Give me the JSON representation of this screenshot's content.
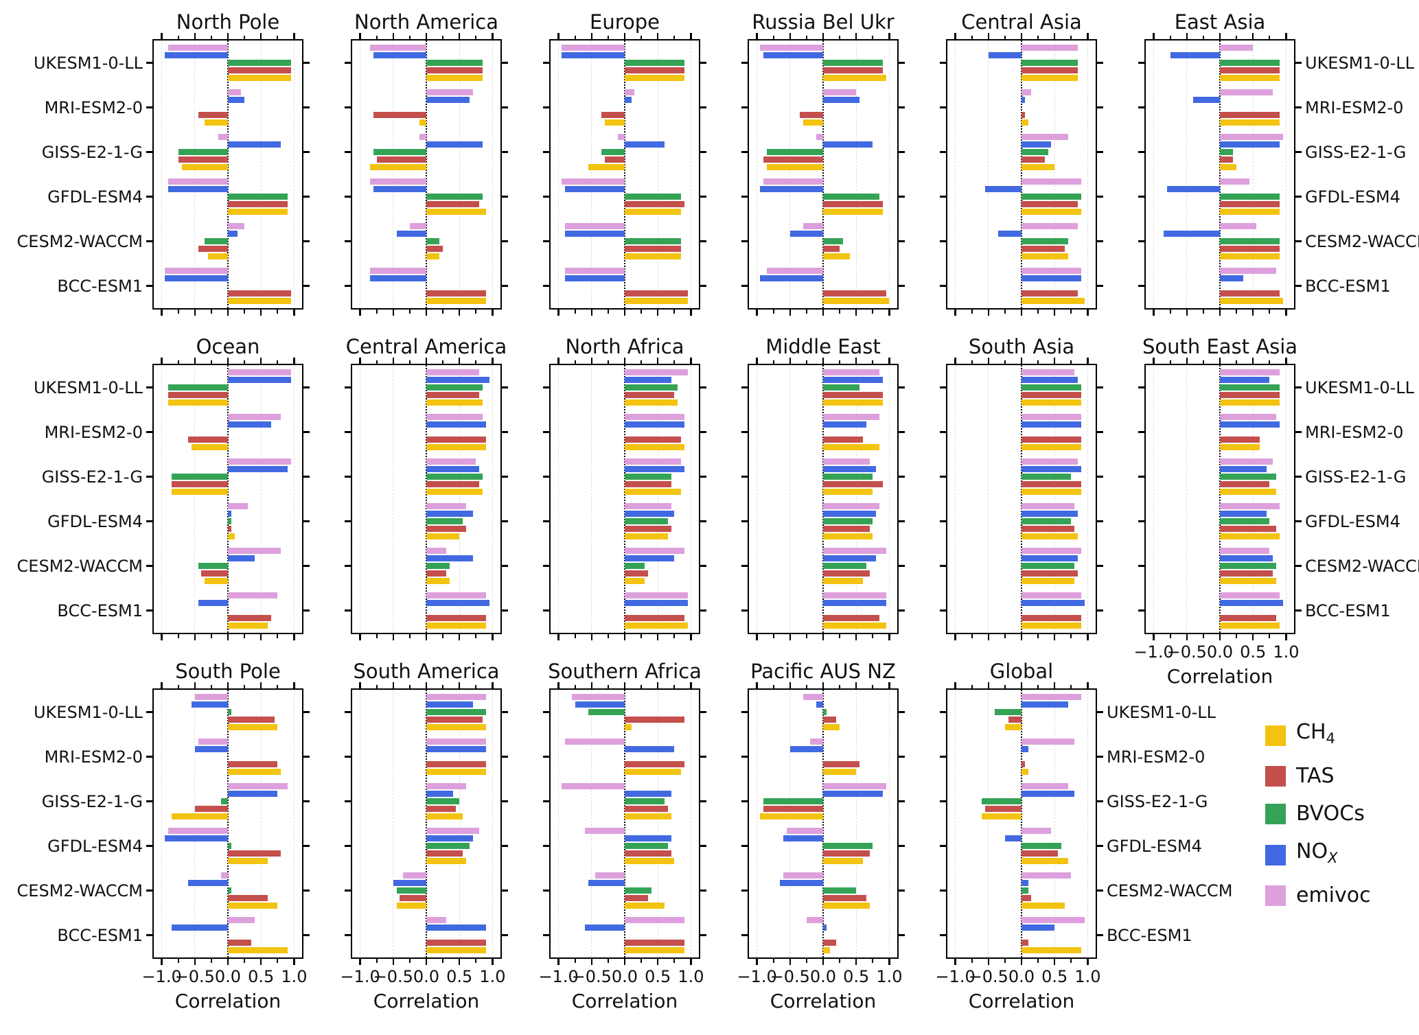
{
  "figure": {
    "background": "#ffffff",
    "text_color": "#111111"
  },
  "chart_data": {
    "type": "bar",
    "orientation": "horizontal",
    "xlabel": "Correlation",
    "xlim": [
      -1.12,
      1.12
    ],
    "xticks": [
      -1.0,
      -0.5,
      0.0,
      0.5,
      1.0
    ],
    "xtick_labels": [
      "−1.0",
      "−0.5",
      "0.0",
      "0.5",
      "1.0"
    ],
    "minor_xticks": [
      -0.75,
      -0.25,
      0.25,
      0.75
    ],
    "grid": {
      "dashed_gridlines_at": [
        -1.0,
        -0.5,
        0.5,
        1.0
      ],
      "zero_line": "dotted"
    },
    "models": [
      "UKESM1-0-LL",
      "MRI-ESM2-0",
      "GISS-E2-1-G",
      "GFDL-ESM4",
      "CESM2-WACCM",
      "BCC-ESM1"
    ],
    "series": [
      "CH4",
      "TAS",
      "BVOCs",
      "NOx",
      "emivoc"
    ],
    "bar_order_top_to_bottom": [
      "emivoc",
      "NOx",
      "BVOCs",
      "TAS",
      "CH4"
    ],
    "colors": {
      "CH4": "#F3C311",
      "TAS": "#C44F4C",
      "BVOCs": "#35A356",
      "NOx": "#4169E1",
      "emivoc": "#DDA0DD"
    },
    "legend": {
      "position": "bottom-right",
      "items": [
        {
          "series": "CH4",
          "base": "CH",
          "sub": "4",
          "sub_italic": false
        },
        {
          "series": "TAS",
          "base": "TAS",
          "sub": "",
          "sub_italic": false
        },
        {
          "series": "BVOCs",
          "base": "BVOCs",
          "sub": "",
          "sub_italic": false
        },
        {
          "series": "NOx",
          "base": "NO",
          "sub": "X",
          "sub_italic": true
        },
        {
          "series": "emivoc",
          "base": "emivoc",
          "sub": "",
          "sub_italic": false
        }
      ]
    },
    "panels": [
      {
        "title": "North Pole",
        "row": 0,
        "col": 0,
        "ylabels": "left",
        "xticklabels": false,
        "xlabel": false,
        "values": {
          "UKESM1-0-LL": [
            0.95,
            0.95,
            0.95,
            -0.95,
            -0.9
          ],
          "MRI-ESM2-0": [
            -0.35,
            -0.45,
            null,
            0.25,
            0.2
          ],
          "GISS-E2-1-G": [
            -0.7,
            -0.75,
            -0.75,
            0.8,
            -0.15
          ],
          "GFDL-ESM4": [
            0.9,
            0.9,
            0.9,
            -0.9,
            -0.9
          ],
          "CESM2-WACCM": [
            -0.3,
            -0.45,
            -0.35,
            0.15,
            0.25
          ],
          "BCC-ESM1": [
            0.95,
            0.95,
            null,
            -0.95,
            -0.95
          ]
        }
      },
      {
        "title": "North America",
        "row": 0,
        "col": 1,
        "ylabels": "none",
        "xticklabels": false,
        "xlabel": false,
        "values": {
          "UKESM1-0-LL": [
            0.85,
            0.85,
            0.85,
            -0.8,
            -0.85
          ],
          "MRI-ESM2-0": [
            -0.1,
            -0.8,
            null,
            0.65,
            0.7
          ],
          "GISS-E2-1-G": [
            -0.85,
            -0.75,
            -0.8,
            0.85,
            -0.1
          ],
          "GFDL-ESM4": [
            0.9,
            0.8,
            0.85,
            -0.8,
            -0.85
          ],
          "CESM2-WACCM": [
            0.2,
            0.25,
            0.2,
            -0.45,
            -0.25
          ],
          "BCC-ESM1": [
            0.9,
            0.9,
            null,
            -0.85,
            -0.85
          ]
        }
      },
      {
        "title": "Europe",
        "row": 0,
        "col": 2,
        "ylabels": "none",
        "xticklabels": false,
        "xlabel": false,
        "values": {
          "UKESM1-0-LL": [
            0.9,
            0.9,
            0.9,
            -0.95,
            -0.95
          ],
          "MRI-ESM2-0": [
            -0.3,
            -0.35,
            null,
            0.1,
            0.15
          ],
          "GISS-E2-1-G": [
            -0.55,
            -0.3,
            -0.35,
            0.6,
            -0.1
          ],
          "GFDL-ESM4": [
            0.85,
            0.9,
            0.85,
            -0.9,
            -0.95
          ],
          "CESM2-WACCM": [
            0.85,
            0.85,
            0.85,
            -0.9,
            -0.9
          ],
          "BCC-ESM1": [
            0.95,
            0.95,
            null,
            -0.9,
            -0.9
          ]
        }
      },
      {
        "title": "Russia Bel Ukr",
        "row": 0,
        "col": 3,
        "ylabels": "none",
        "xticklabels": false,
        "xlabel": false,
        "values": {
          "UKESM1-0-LL": [
            0.95,
            0.9,
            0.9,
            -0.9,
            -0.95
          ],
          "MRI-ESM2-0": [
            -0.3,
            -0.35,
            null,
            0.55,
            0.5
          ],
          "GISS-E2-1-G": [
            -0.85,
            -0.9,
            -0.85,
            0.75,
            -0.1
          ],
          "GFDL-ESM4": [
            0.9,
            0.9,
            0.85,
            -0.95,
            -0.9
          ],
          "CESM2-WACCM": [
            0.4,
            0.25,
            0.3,
            -0.5,
            -0.3
          ],
          "BCC-ESM1": [
            1.0,
            0.95,
            null,
            -0.95,
            -0.85
          ]
        }
      },
      {
        "title": "Central Asia",
        "row": 0,
        "col": 4,
        "ylabels": "none",
        "xticklabels": false,
        "xlabel": false,
        "values": {
          "UKESM1-0-LL": [
            0.85,
            0.85,
            0.85,
            -0.5,
            0.85
          ],
          "MRI-ESM2-0": [
            0.1,
            0.05,
            null,
            0.05,
            0.15
          ],
          "GISS-E2-1-G": [
            0.5,
            0.35,
            0.4,
            0.45,
            0.7
          ],
          "GFDL-ESM4": [
            0.9,
            0.85,
            0.9,
            -0.55,
            0.9
          ],
          "CESM2-WACCM": [
            0.7,
            0.65,
            0.7,
            -0.35,
            0.85
          ],
          "BCC-ESM1": [
            0.95,
            0.85,
            null,
            0.9,
            0.9
          ]
        }
      },
      {
        "title": "East Asia",
        "row": 0,
        "col": 5,
        "ylabels": "right",
        "xticklabels": false,
        "xlabel": false,
        "values": {
          "UKESM1-0-LL": [
            0.9,
            0.9,
            0.9,
            -0.75,
            0.5
          ],
          "MRI-ESM2-0": [
            0.9,
            0.9,
            null,
            -0.4,
            0.8
          ],
          "GISS-E2-1-G": [
            0.25,
            0.2,
            0.2,
            0.9,
            0.95
          ],
          "GFDL-ESM4": [
            0.9,
            0.9,
            0.9,
            -0.8,
            0.45
          ],
          "CESM2-WACCM": [
            0.9,
            0.9,
            0.9,
            -0.85,
            0.55
          ],
          "BCC-ESM1": [
            0.95,
            0.9,
            null,
            0.35,
            0.85
          ]
        }
      },
      {
        "title": "Ocean",
        "row": 1,
        "col": 0,
        "ylabels": "left",
        "xticklabels": false,
        "xlabel": false,
        "values": {
          "UKESM1-0-LL": [
            -0.9,
            -0.9,
            -0.9,
            0.95,
            0.95
          ],
          "MRI-ESM2-0": [
            -0.55,
            -0.6,
            null,
            0.65,
            0.8
          ],
          "GISS-E2-1-G": [
            -0.85,
            -0.85,
            -0.85,
            0.9,
            0.95
          ],
          "GFDL-ESM4": [
            0.1,
            0.05,
            0.05,
            0.05,
            0.3
          ],
          "CESM2-WACCM": [
            -0.35,
            -0.4,
            -0.45,
            0.4,
            0.8
          ],
          "BCC-ESM1": [
            0.6,
            0.65,
            null,
            -0.45,
            0.75
          ]
        }
      },
      {
        "title": "Central America",
        "row": 1,
        "col": 1,
        "ylabels": "none",
        "xticklabels": false,
        "xlabel": false,
        "values": {
          "UKESM1-0-LL": [
            0.85,
            0.8,
            0.85,
            0.95,
            0.8
          ],
          "MRI-ESM2-0": [
            0.9,
            0.9,
            null,
            0.9,
            0.85
          ],
          "GISS-E2-1-G": [
            0.85,
            0.8,
            0.85,
            0.8,
            0.75
          ],
          "GFDL-ESM4": [
            0.5,
            0.6,
            0.55,
            0.7,
            0.6
          ],
          "CESM2-WACCM": [
            0.35,
            0.3,
            0.35,
            0.7,
            0.3
          ],
          "BCC-ESM1": [
            0.9,
            0.9,
            null,
            0.95,
            0.9
          ]
        }
      },
      {
        "title": "North Africa",
        "row": 1,
        "col": 2,
        "ylabels": "none",
        "xticklabels": false,
        "xlabel": false,
        "values": {
          "UKESM1-0-LL": [
            0.8,
            0.75,
            0.8,
            0.7,
            0.95
          ],
          "MRI-ESM2-0": [
            0.9,
            0.85,
            null,
            0.9,
            0.9
          ],
          "GISS-E2-1-G": [
            0.85,
            0.7,
            0.7,
            0.9,
            0.85
          ],
          "GFDL-ESM4": [
            0.65,
            0.7,
            0.65,
            0.75,
            0.7
          ],
          "CESM2-WACCM": [
            0.3,
            0.35,
            0.3,
            0.75,
            0.9
          ],
          "BCC-ESM1": [
            0.95,
            0.9,
            null,
            0.95,
            0.95
          ]
        }
      },
      {
        "title": "Middle East",
        "row": 1,
        "col": 3,
        "ylabels": "none",
        "xticklabels": false,
        "xlabel": false,
        "values": {
          "UKESM1-0-LL": [
            0.9,
            0.9,
            0.55,
            0.9,
            0.85
          ],
          "MRI-ESM2-0": [
            0.85,
            0.6,
            null,
            0.65,
            0.85
          ],
          "GISS-E2-1-G": [
            0.75,
            0.9,
            0.75,
            0.8,
            0.7
          ],
          "GFDL-ESM4": [
            0.75,
            0.7,
            0.75,
            0.8,
            0.85
          ],
          "CESM2-WACCM": [
            0.6,
            0.7,
            0.65,
            0.8,
            0.95
          ],
          "BCC-ESM1": [
            0.95,
            0.85,
            null,
            0.95,
            0.95
          ]
        }
      },
      {
        "title": "South Asia",
        "row": 1,
        "col": 4,
        "ylabels": "none",
        "xticklabels": false,
        "xlabel": false,
        "values": {
          "UKESM1-0-LL": [
            0.9,
            0.9,
            0.9,
            0.85,
            0.8
          ],
          "MRI-ESM2-0": [
            0.9,
            0.9,
            null,
            0.9,
            0.9
          ],
          "GISS-E2-1-G": [
            0.9,
            0.9,
            0.75,
            0.9,
            0.85
          ],
          "GFDL-ESM4": [
            0.85,
            0.8,
            0.75,
            0.85,
            0.8
          ],
          "CESM2-WACCM": [
            0.8,
            0.85,
            0.8,
            0.85,
            0.9
          ],
          "BCC-ESM1": [
            0.9,
            0.9,
            null,
            0.95,
            0.9
          ]
        }
      },
      {
        "title": "South East Asia",
        "row": 1,
        "col": 5,
        "ylabels": "right",
        "xticklabels": true,
        "xlabel": true,
        "values": {
          "UKESM1-0-LL": [
            0.9,
            0.9,
            0.9,
            0.75,
            0.9
          ],
          "MRI-ESM2-0": [
            0.6,
            0.6,
            null,
            0.9,
            0.85
          ],
          "GISS-E2-1-G": [
            0.85,
            0.75,
            0.85,
            0.7,
            0.8
          ],
          "GFDL-ESM4": [
            0.9,
            0.85,
            0.75,
            0.7,
            0.9
          ],
          "CESM2-WACCM": [
            0.85,
            0.8,
            0.85,
            0.8,
            0.75
          ],
          "BCC-ESM1": [
            0.9,
            0.85,
            null,
            0.95,
            0.9
          ]
        }
      },
      {
        "title": "South Pole",
        "row": 2,
        "col": 0,
        "ylabels": "left",
        "xticklabels": true,
        "xlabel": true,
        "values": {
          "UKESM1-0-LL": [
            0.75,
            0.7,
            0.05,
            -0.55,
            -0.5
          ],
          "MRI-ESM2-0": [
            0.8,
            0.75,
            null,
            -0.5,
            -0.45
          ],
          "GISS-E2-1-G": [
            -0.85,
            -0.5,
            -0.1,
            0.75,
            0.9
          ],
          "GFDL-ESM4": [
            0.6,
            0.8,
            0.05,
            -0.95,
            -0.9
          ],
          "CESM2-WACCM": [
            0.75,
            0.6,
            0.05,
            -0.6,
            -0.1
          ],
          "BCC-ESM1": [
            0.9,
            0.35,
            null,
            -0.85,
            0.4
          ]
        }
      },
      {
        "title": "South America",
        "row": 2,
        "col": 1,
        "ylabels": "none",
        "xticklabels": true,
        "xlabel": true,
        "values": {
          "UKESM1-0-LL": [
            0.9,
            0.85,
            0.9,
            0.7,
            0.9
          ],
          "MRI-ESM2-0": [
            0.9,
            0.9,
            null,
            0.9,
            0.9
          ],
          "GISS-E2-1-G": [
            0.55,
            0.45,
            0.5,
            0.4,
            0.6
          ],
          "GFDL-ESM4": [
            0.6,
            0.55,
            0.65,
            0.7,
            0.8
          ],
          "CESM2-WACCM": [
            -0.45,
            -0.4,
            -0.45,
            -0.5,
            -0.35
          ],
          "BCC-ESM1": [
            0.9,
            0.9,
            null,
            0.9,
            0.3
          ]
        }
      },
      {
        "title": "Southern Africa",
        "row": 2,
        "col": 2,
        "ylabels": "none",
        "xticklabels": true,
        "xlabel": true,
        "values": {
          "UKESM1-0-LL": [
            0.1,
            0.9,
            -0.55,
            -0.75,
            -0.8
          ],
          "MRI-ESM2-0": [
            0.85,
            0.9,
            null,
            0.75,
            -0.9
          ],
          "GISS-E2-1-G": [
            0.7,
            0.65,
            0.6,
            0.7,
            -0.95
          ],
          "GFDL-ESM4": [
            0.75,
            0.7,
            0.65,
            0.7,
            -0.6
          ],
          "CESM2-WACCM": [
            0.6,
            0.35,
            0.4,
            -0.55,
            -0.45
          ],
          "BCC-ESM1": [
            0.9,
            0.9,
            null,
            -0.6,
            0.9
          ]
        }
      },
      {
        "title": "Pacific AUS NZ",
        "row": 2,
        "col": 3,
        "ylabels": "none",
        "xticklabels": true,
        "xlabel": true,
        "values": {
          "UKESM1-0-LL": [
            0.25,
            0.2,
            0.05,
            -0.1,
            -0.3
          ],
          "MRI-ESM2-0": [
            0.5,
            0.55,
            null,
            -0.5,
            -0.2
          ],
          "GISS-E2-1-G": [
            -0.95,
            -0.9,
            -0.9,
            0.9,
            0.95
          ],
          "GFDL-ESM4": [
            0.6,
            0.7,
            0.75,
            -0.6,
            -0.55
          ],
          "CESM2-WACCM": [
            0.7,
            0.65,
            0.5,
            -0.65,
            -0.6
          ],
          "BCC-ESM1": [
            0.1,
            0.2,
            null,
            0.05,
            -0.25
          ]
        }
      },
      {
        "title": "Global",
        "row": 2,
        "col": 4,
        "ylabels": "right",
        "xticklabels": true,
        "xlabel": true,
        "values": {
          "UKESM1-0-LL": [
            -0.25,
            -0.2,
            -0.4,
            0.7,
            0.9
          ],
          "MRI-ESM2-0": [
            0.1,
            0.05,
            null,
            0.1,
            0.8
          ],
          "GISS-E2-1-G": [
            -0.6,
            -0.55,
            -0.6,
            0.8,
            0.7
          ],
          "GFDL-ESM4": [
            0.7,
            0.55,
            0.6,
            -0.25,
            0.45
          ],
          "CESM2-WACCM": [
            0.65,
            0.15,
            0.1,
            0.1,
            0.75
          ],
          "BCC-ESM1": [
            0.9,
            0.1,
            null,
            0.5,
            0.95
          ]
        }
      }
    ]
  }
}
